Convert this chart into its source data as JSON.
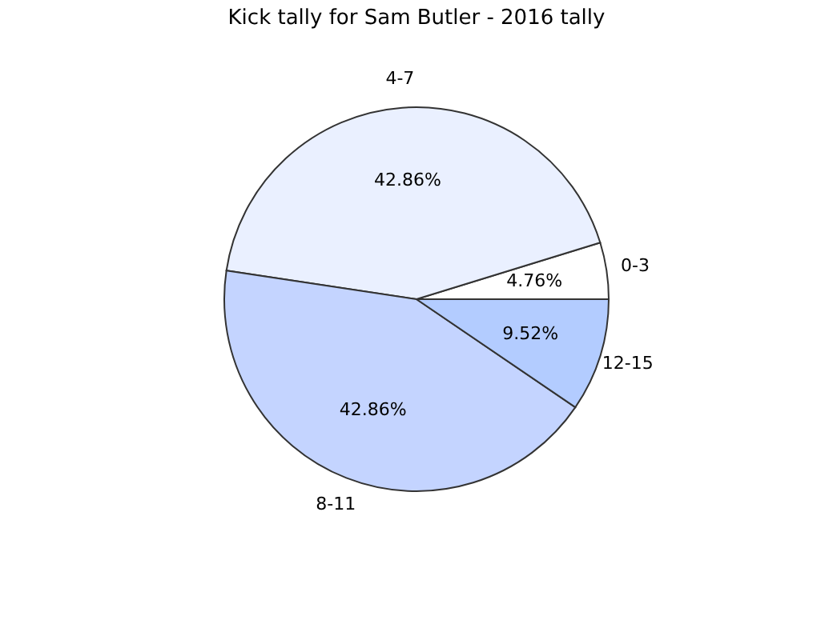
{
  "chart_data": {
    "type": "pie",
    "title": "Kick tally for Sam Butler - 2016 tally",
    "categories": [
      "0-3",
      "4-7",
      "8-11",
      "12-15"
    ],
    "values": [
      4.76,
      42.86,
      42.86,
      9.52
    ],
    "value_labels": [
      "4.76%",
      "42.86%",
      "42.86%",
      "9.52%"
    ],
    "colors": [
      "#ffffff",
      "#eaf0ff",
      "#c4d4ff",
      "#b3ccff"
    ],
    "legend": false
  }
}
